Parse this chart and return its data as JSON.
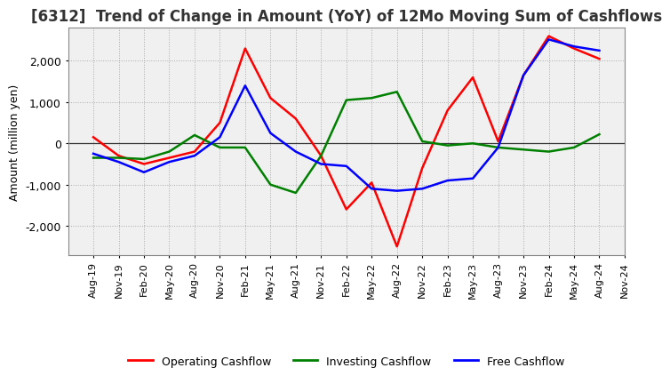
{
  "title": "[6312]  Trend of Change in Amount (YoY) of 12Mo Moving Sum of Cashflows",
  "ylabel": "Amount (million yen)",
  "x_labels": [
    "Aug-19",
    "Nov-19",
    "Feb-20",
    "May-20",
    "Aug-20",
    "Nov-20",
    "Feb-21",
    "May-21",
    "Aug-21",
    "Nov-21",
    "Feb-22",
    "May-22",
    "Aug-22",
    "Nov-22",
    "Feb-23",
    "May-23",
    "Aug-23",
    "Nov-23",
    "Feb-24",
    "May-24",
    "Aug-24",
    "Nov-24"
  ],
  "operating": [
    150,
    -300,
    -500,
    -350,
    -200,
    500,
    2300,
    1100,
    600,
    -300,
    -1600,
    -950,
    -2500,
    -600,
    800,
    1600,
    50,
    1650,
    2600,
    2300,
    2050,
    null
  ],
  "investing": [
    -350,
    -350,
    -380,
    -200,
    200,
    -100,
    -100,
    -1000,
    -1200,
    -300,
    1050,
    1100,
    1250,
    50,
    -50,
    0,
    -100,
    -150,
    -200,
    -100,
    220,
    null
  ],
  "free": [
    -250,
    -450,
    -700,
    -450,
    -300,
    150,
    1400,
    250,
    -200,
    -500,
    -550,
    -1100,
    -1150,
    -1100,
    -900,
    -850,
    -100,
    1650,
    2520,
    2350,
    2250,
    null
  ],
  "operating_color": "#ff0000",
  "investing_color": "#008000",
  "free_color": "#0000ff",
  "ylim": [
    -2700,
    2800
  ],
  "yticks": [
    -2000,
    -1000,
    0,
    1000,
    2000
  ],
  "background_color": "#ffffff",
  "plot_bg_color": "#f0f0f0",
  "grid_color": "#aaaaaa",
  "title_fontsize": 12,
  "axis_fontsize": 9,
  "tick_fontsize": 8,
  "legend_fontsize": 9
}
